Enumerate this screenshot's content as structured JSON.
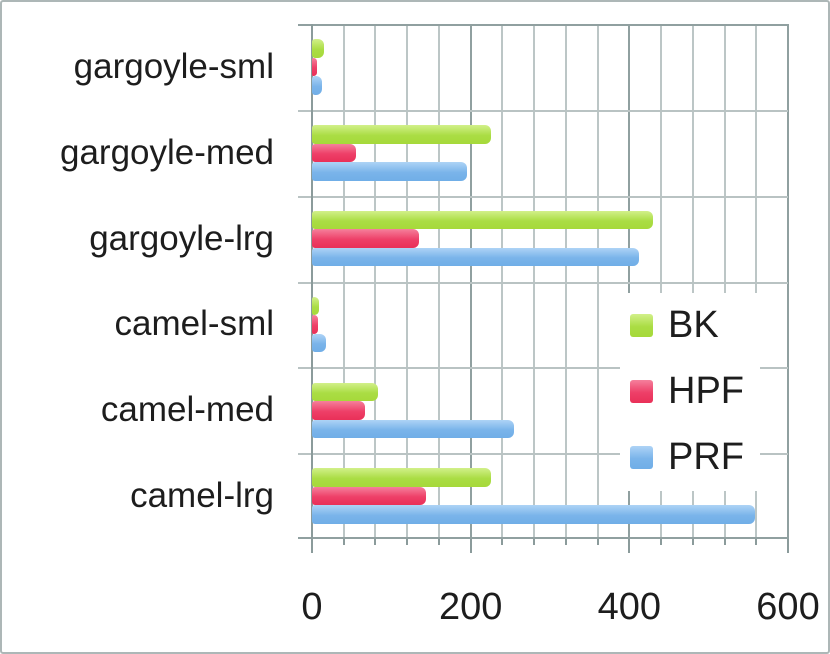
{
  "chart_data": {
    "type": "bar",
    "orientation": "horizontal",
    "grid": true,
    "xlim": [
      0,
      600
    ],
    "x_major_ticks": [
      0,
      200,
      400,
      600
    ],
    "x_major_tick_labels": [
      "0",
      "200",
      "400",
      "600"
    ],
    "x_minor_unit": 40,
    "legend_position": "middle-right",
    "categories": [
      "gargoyle-sml",
      "gargoyle-med",
      "gargoyle-lrg",
      "camel-sml",
      "camel-med",
      "camel-lrg"
    ],
    "series": [
      {
        "name": "BK",
        "color": "#aadd44",
        "gradient": [
          "#d2f08a",
          "#a6d93a"
        ],
        "values": [
          15,
          225,
          430,
          9,
          83,
          225
        ]
      },
      {
        "name": "HPF",
        "color": "#ee3f68",
        "gradient": [
          "#f5809c",
          "#e93058"
        ],
        "values": [
          6,
          56,
          135,
          7,
          67,
          144
        ]
      },
      {
        "name": "PRF",
        "color": "#7ab4ea",
        "gradient": [
          "#aed3f6",
          "#70aee7"
        ],
        "values": [
          13,
          195,
          412,
          18,
          254,
          558
        ]
      }
    ]
  },
  "colors": {
    "background": "#ffffff",
    "frame_border": "#adb7b7",
    "grid_minor": "#bcc6c6",
    "grid_major": "#90a0a0",
    "axis": "#8b9b9b",
    "text": "#1d1d1d"
  }
}
